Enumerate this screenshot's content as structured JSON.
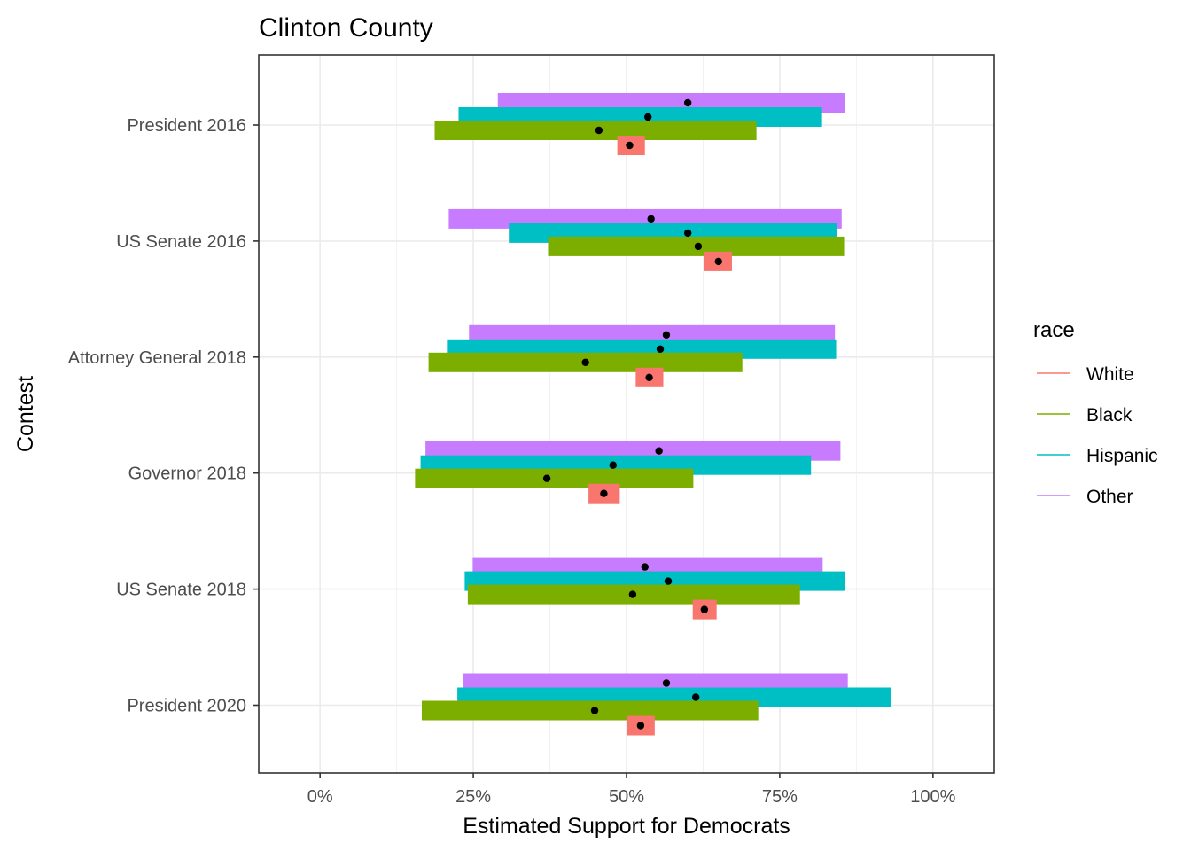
{
  "chart_data": {
    "type": "bar",
    "title": "Clinton County",
    "xlabel": "Estimated Support for Democrats",
    "ylabel": "Contest",
    "xlim": [
      -0.1,
      1.1
    ],
    "x_ticks": [
      0,
      0.25,
      0.5,
      0.75,
      1.0
    ],
    "x_tick_labels": [
      "0%",
      "25%",
      "50%",
      "75%",
      "100%"
    ],
    "grid": true,
    "legend_title": "race",
    "legend_position": "right",
    "categories": [
      "President 2016",
      "US Senate 2016",
      "Attorney General 2018",
      "Governor 2018",
      "US Senate 2018",
      "President 2020"
    ],
    "series": [
      {
        "name": "White",
        "color": "#F8766D",
        "estimates": [
          0.505,
          0.65,
          0.537,
          0.463,
          0.627,
          0.523
        ],
        "lower": [
          0.485,
          0.627,
          0.515,
          0.438,
          0.608,
          0.5
        ],
        "upper": [
          0.53,
          0.672,
          0.56,
          0.489,
          0.647,
          0.546
        ]
      },
      {
        "name": "Black",
        "color": "#7CAE00",
        "estimates": [
          0.455,
          0.617,
          0.433,
          0.37,
          0.51,
          0.448
        ],
        "lower": [
          0.187,
          0.372,
          0.177,
          0.155,
          0.241,
          0.166
        ],
        "upper": [
          0.712,
          0.855,
          0.689,
          0.609,
          0.783,
          0.715
        ]
      },
      {
        "name": "Hispanic",
        "color": "#00BFC4",
        "estimates": [
          0.535,
          0.6,
          0.555,
          0.478,
          0.568,
          0.613
        ],
        "lower": [
          0.226,
          0.308,
          0.207,
          0.164,
          0.236,
          0.224
        ],
        "upper": [
          0.819,
          0.843,
          0.842,
          0.801,
          0.856,
          0.931
        ]
      },
      {
        "name": "Other",
        "color": "#C77CFF",
        "estimates": [
          0.6,
          0.54,
          0.565,
          0.553,
          0.53,
          0.565
        ],
        "lower": [
          0.29,
          0.21,
          0.243,
          0.172,
          0.249,
          0.234
        ],
        "upper": [
          0.857,
          0.851,
          0.84,
          0.849,
          0.82,
          0.861
        ]
      }
    ]
  }
}
